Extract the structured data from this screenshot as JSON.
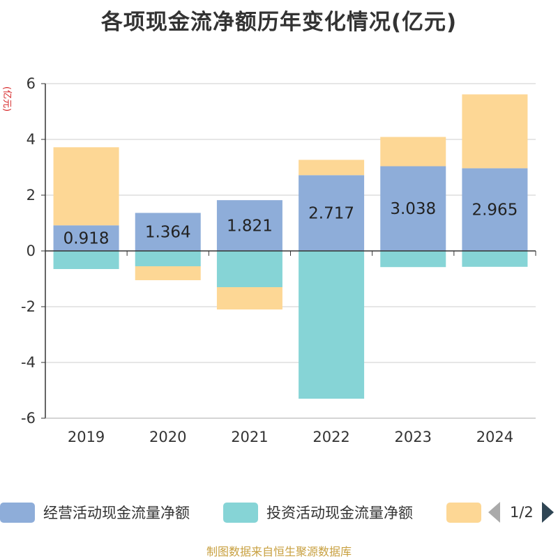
{
  "title": "各项现金流净额历年变化情况(亿元)",
  "source": "制图数据来自恒生聚源数据库",
  "colors": {
    "operating": "#8eadd9",
    "investing": "#86d4d6",
    "financing": "#fdd795",
    "grid": "#cccccc",
    "axis": "#333333",
    "unit": "#d62728"
  },
  "legend": {
    "items": [
      {
        "label": "经营活动现金流量净额",
        "color": "#8eadd9"
      },
      {
        "label": "投资活动现金流量净额",
        "color": "#86d4d6"
      },
      {
        "label": "",
        "color": "#fdd795"
      }
    ],
    "page": "1/2"
  },
  "chart_data": {
    "type": "bar",
    "stacked": true,
    "title": "各项现金流净额历年变化情况(亿元)",
    "ylabel": "(亿元)",
    "xlabel": "",
    "ylim": [
      -6,
      6
    ],
    "yticks": [
      6,
      4,
      2,
      0,
      -2,
      -4,
      -6
    ],
    "grid": true,
    "legend_position": "bottom",
    "categories": [
      "2019",
      "2020",
      "2021",
      "2022",
      "2023",
      "2024"
    ],
    "series": [
      {
        "name": "经营活动现金流量净额",
        "values": [
          0.918,
          1.364,
          1.821,
          2.717,
          3.038,
          2.965
        ],
        "labeled": true
      },
      {
        "name": "投资活动现金流量净额",
        "values": [
          -0.65,
          -0.55,
          -1.3,
          -5.3,
          -0.58,
          -0.57
        ],
        "labeled": false
      },
      {
        "values": [
          2.8,
          -0.5,
          -0.8,
          0.55,
          1.05,
          2.65
        ],
        "labeled": false
      }
    ]
  }
}
